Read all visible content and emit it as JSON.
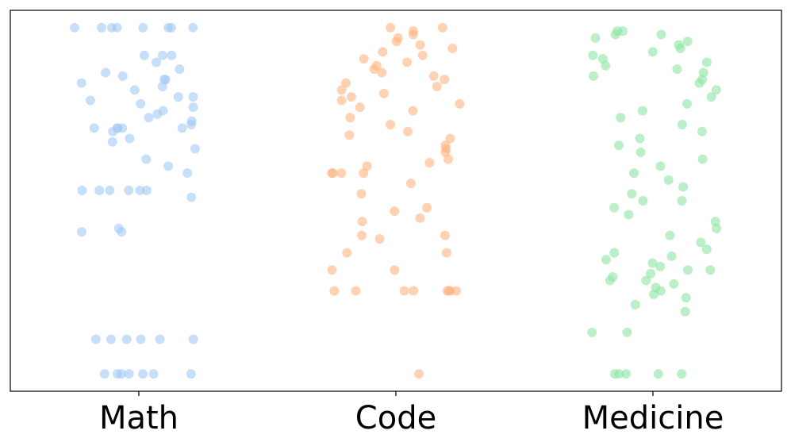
{
  "chart_data": {
    "type": "strip",
    "categories": [
      "Math",
      "Code",
      "Medicine"
    ],
    "colors": [
      "#a1c9f4",
      "#ffb482",
      "#8de5a1"
    ],
    "ylim": [
      -0.05,
      1.05
    ],
    "values": [
      [
        1,
        1,
        1,
        1,
        1,
        1,
        1,
        1,
        0.92,
        0.92,
        0.92,
        0.9,
        0.88,
        0.87,
        0.86,
        0.85,
        0.85,
        0.84,
        0.83,
        0.82,
        0.8,
        0.8,
        0.79,
        0.78,
        0.77,
        0.76,
        0.75,
        0.74,
        0.73,
        0.72,
        0.71,
        0.71,
        0.71,
        0.71,
        0.71,
        0.7,
        0.68,
        0.67,
        0.65,
        0.62,
        0.6,
        0.58,
        0.53,
        0.53,
        0.53,
        0.53,
        0.53,
        0.53,
        0.51,
        0.41,
        0.41,
        0.42,
        0.1,
        0.1,
        0.1,
        0.1,
        0.1,
        0.1,
        0,
        0,
        0,
        0,
        0,
        0,
        0
      ],
      [
        1,
        1,
        0.99,
        0.98,
        0.97,
        0.96,
        0.95,
        0.94,
        0.93,
        0.92,
        0.91,
        0.9,
        0.89,
        0.88,
        0.87,
        0.86,
        0.85,
        0.84,
        0.83,
        0.82,
        0.81,
        0.8,
        0.79,
        0.78,
        0.77,
        0.76,
        0.74,
        0.72,
        0.7,
        0.69,
        0.68,
        0.66,
        0.65,
        0.64,
        0.62,
        0.61,
        0.6,
        0.58,
        0.58,
        0.58,
        0.58,
        0.55,
        0.52,
        0.48,
        0.47,
        0.45,
        0.44,
        0.4,
        0.4,
        0.39,
        0.35,
        0.35,
        0.3,
        0.3,
        0.24,
        0.24,
        0.24,
        0.24,
        0.24,
        0.24,
        0.24,
        0.24,
        0
      ],
      [
        0.99,
        0.99,
        0.98,
        0.98,
        0.97,
        0.96,
        0.95,
        0.94,
        0.93,
        0.92,
        0.91,
        0.9,
        0.89,
        0.88,
        0.87,
        0.86,
        0.85,
        0.84,
        0.82,
        0.8,
        0.78,
        0.76,
        0.74,
        0.72,
        0.7,
        0.68,
        0.66,
        0.64,
        0.62,
        0.6,
        0.58,
        0.56,
        0.54,
        0.52,
        0.5,
        0.5,
        0.48,
        0.46,
        0.44,
        0.42,
        0.4,
        0.38,
        0.36,
        0.35,
        0.34,
        0.33,
        0.32,
        0.31,
        0.3,
        0.3,
        0.29,
        0.28,
        0.27,
        0.27,
        0.26,
        0.25,
        0.24,
        0.23,
        0.22,
        0.2,
        0.18,
        0.12,
        0.12,
        0,
        0,
        0,
        0,
        0
      ]
    ]
  }
}
